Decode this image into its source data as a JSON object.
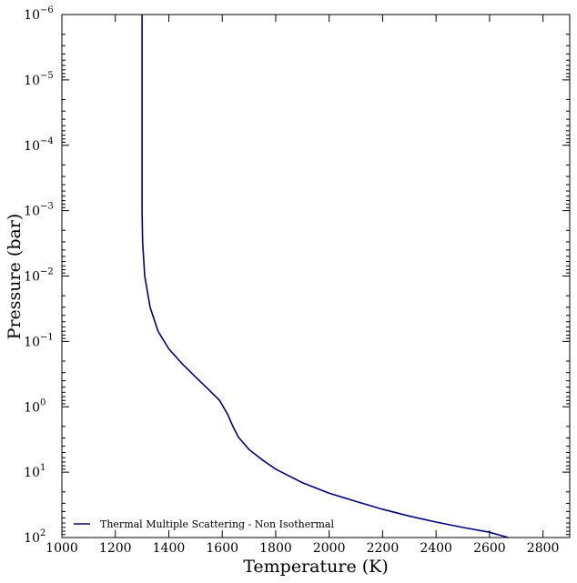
{
  "chart_data": {
    "type": "line",
    "xlabel": "Temperature (K)",
    "ylabel": "Pressure (bar)",
    "xlim": [
      1000,
      2900
    ],
    "ylim_log10": [
      -6,
      2
    ],
    "y_axis_inverted": true,
    "y_scale": "log",
    "x_ticks": [
      1000,
      1200,
      1400,
      1600,
      1800,
      2000,
      2200,
      2400,
      2600,
      2800
    ],
    "y_ticks": [
      {
        "base": "10",
        "exp": "−6",
        "log": -6
      },
      {
        "base": "10",
        "exp": "−5",
        "log": -5
      },
      {
        "base": "10",
        "exp": "−4",
        "log": -4
      },
      {
        "base": "10",
        "exp": "−3",
        "log": -3
      },
      {
        "base": "10",
        "exp": "−2",
        "log": -2
      },
      {
        "base": "10",
        "exp": "−1",
        "log": -1
      },
      {
        "base": "10",
        "exp": "0",
        "log": 0
      },
      {
        "base": "10",
        "exp": "1",
        "log": 1
      },
      {
        "base": "10",
        "exp": "2",
        "log": 2
      }
    ],
    "grid": false,
    "legend_position": "lower-left",
    "series": [
      {
        "name": "Thermal Multiple Scattering - Non Isothermal",
        "color": "#00007f",
        "points": [
          [
            1300,
            1e-06
          ],
          [
            1300,
            1e-05
          ],
          [
            1300,
            0.0001
          ],
          [
            1300,
            0.001
          ],
          [
            1302,
            0.003
          ],
          [
            1310,
            0.01
          ],
          [
            1330,
            0.03
          ],
          [
            1360,
            0.07
          ],
          [
            1400,
            0.13
          ],
          [
            1450,
            0.22
          ],
          [
            1500,
            0.35
          ],
          [
            1550,
            0.55
          ],
          [
            1590,
            0.8
          ],
          [
            1620,
            1.3
          ],
          [
            1640,
            2.0
          ],
          [
            1660,
            2.9
          ],
          [
            1700,
            4.5
          ],
          [
            1750,
            6.5
          ],
          [
            1800,
            9.0
          ],
          [
            1900,
            14.5
          ],
          [
            2000,
            21.0
          ],
          [
            2100,
            28.0
          ],
          [
            2200,
            37.0
          ],
          [
            2300,
            47.0
          ],
          [
            2400,
            58.0
          ],
          [
            2500,
            70.0
          ],
          [
            2600,
            83.0
          ],
          [
            2670,
            100.0
          ]
        ]
      }
    ]
  }
}
